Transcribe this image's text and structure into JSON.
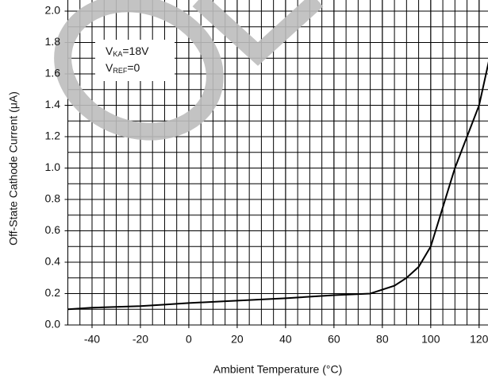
{
  "chart_data": {
    "type": "line",
    "x_label": "Ambient Temperature (°C)",
    "y_label": "Off-State Cathode Current (μA)",
    "annotations": [
      {
        "main": "V",
        "sub": "KA",
        "rest": "=18V"
      },
      {
        "main": "V",
        "sub": "REF",
        "rest": "=0"
      }
    ],
    "xlim": [
      -50,
      124
    ],
    "ylim": [
      0,
      2.0
    ],
    "xticks": [
      -40,
      -20,
      0,
      20,
      40,
      60,
      80,
      100,
      120
    ],
    "yticks": [
      {
        "value": 0,
        "label": "0.0"
      },
      {
        "value": 0.2,
        "label": "0.2"
      },
      {
        "value": 0.4,
        "label": "0.4"
      },
      {
        "value": 0.6,
        "label": "0.6"
      },
      {
        "value": 0.8,
        "label": "0.8"
      },
      {
        "value": 1.0,
        "label": "1.0"
      },
      {
        "value": 1.2,
        "label": "1.2"
      },
      {
        "value": 1.4,
        "label": "1.4"
      },
      {
        "value": 1.6,
        "label": "1.6"
      },
      {
        "value": 1.8,
        "label": "1.8"
      },
      {
        "value": 2.0,
        "label": "2.0"
      }
    ],
    "grid": true,
    "series": [
      {
        "color": "#000000",
        "x": [
          -50,
          -40,
          -20,
          -10,
          0,
          20,
          40,
          60,
          75,
          85,
          90,
          95,
          100,
          110,
          120,
          124
        ],
        "values": [
          0.1,
          0.11,
          0.12,
          0.13,
          0.14,
          0.155,
          0.17,
          0.19,
          0.2,
          0.25,
          0.3,
          0.37,
          0.5,
          1.0,
          1.4,
          1.68
        ]
      }
    ]
  }
}
